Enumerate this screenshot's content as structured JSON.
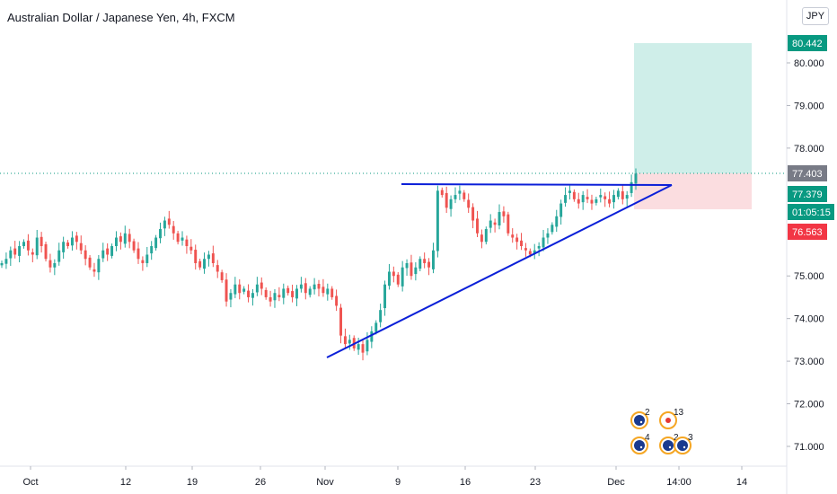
{
  "chart_data": {
    "type": "candlestick",
    "title": "Australian Dollar / Japanese Yen, 4h, FXCM",
    "currency_button": "JPY",
    "x_ticks": [
      "Oct",
      "12",
      "19",
      "26",
      "Nov",
      "9",
      "16",
      "23",
      "Dec",
      "14:00",
      "14"
    ],
    "y_ticks": [
      "80.000",
      "79.000",
      "78.000",
      "75.000",
      "74.000",
      "73.000",
      "72.000",
      "71.000"
    ],
    "y_range": [
      70.5,
      81.5
    ],
    "price_tags": [
      {
        "label": "80.442",
        "value": 80.442,
        "color": "#089981"
      },
      {
        "label": "77.403",
        "value": 77.403,
        "color": "#787b86"
      },
      {
        "label": "77.379",
        "value": 77.379,
        "color": "#089981"
      },
      {
        "label": "01:05:15",
        "value": 77.0,
        "color": "#089981"
      },
      {
        "label": "76.563",
        "value": 76.563,
        "color": "#f23645"
      }
    ],
    "close_series": [
      75.3,
      75.4,
      75.6,
      75.5,
      75.7,
      75.8,
      75.6,
      75.5,
      75.9,
      75.7,
      75.4,
      75.2,
      75.3,
      75.6,
      75.8,
      75.7,
      75.9,
      75.8,
      75.6,
      75.4,
      75.2,
      75.1,
      75.4,
      75.6,
      75.5,
      75.7,
      75.9,
      75.8,
      76.0,
      75.8,
      75.6,
      75.4,
      75.3,
      75.5,
      75.7,
      75.9,
      76.1,
      76.3,
      76.2,
      76.0,
      75.8,
      75.9,
      75.7,
      75.6,
      75.3,
      75.2,
      75.4,
      75.5,
      75.3,
      75.1,
      74.9,
      74.4,
      74.6,
      74.8,
      74.6,
      74.7,
      74.5,
      74.6,
      74.8,
      74.7,
      74.5,
      74.4,
      74.6,
      74.5,
      74.7,
      74.6,
      74.5,
      74.7,
      74.8,
      74.6,
      74.7,
      74.8,
      74.7,
      74.6,
      74.7,
      74.5,
      74.3,
      73.6,
      73.4,
      73.5,
      73.3,
      73.4,
      73.2,
      73.5,
      73.7,
      73.9,
      74.2,
      74.8,
      75.1,
      75.0,
      74.8,
      75.2,
      75.3,
      75.0,
      75.2,
      75.4,
      75.3,
      75.2,
      75.6,
      77.0,
      76.9,
      76.6,
      76.8,
      76.9,
      77.0,
      76.8,
      76.6,
      76.3,
      76.0,
      75.8,
      76.1,
      76.3,
      76.2,
      76.5,
      76.4,
      76.0,
      75.9,
      75.8,
      75.7,
      75.6,
      75.5,
      75.6,
      75.7,
      75.9,
      76.0,
      76.2,
      76.4,
      76.7,
      76.9,
      77.0,
      76.8,
      76.7,
      76.9,
      76.8,
      76.7,
      76.8,
      76.9,
      76.8,
      76.7,
      76.9,
      77.0,
      76.8,
      76.9,
      77.2,
      77.403
    ],
    "events": [
      {
        "number": "2",
        "icon": "flag-au-icon"
      },
      {
        "number": "13",
        "icon": "flag-jp-icon"
      },
      {
        "number": "4",
        "icon": "flag-au-icon"
      },
      {
        "number": "2",
        "icon": "flag-au-icon"
      },
      {
        "number": "3",
        "icon": "flag-au-icon"
      }
    ],
    "colors": {
      "up": "#26a69a",
      "down": "#ef5350",
      "trendline": "#0b1fd8",
      "target_zone": "#cfeee9",
      "stop_zone": "#fbdde0",
      "current_price_line": "#089981"
    }
  }
}
